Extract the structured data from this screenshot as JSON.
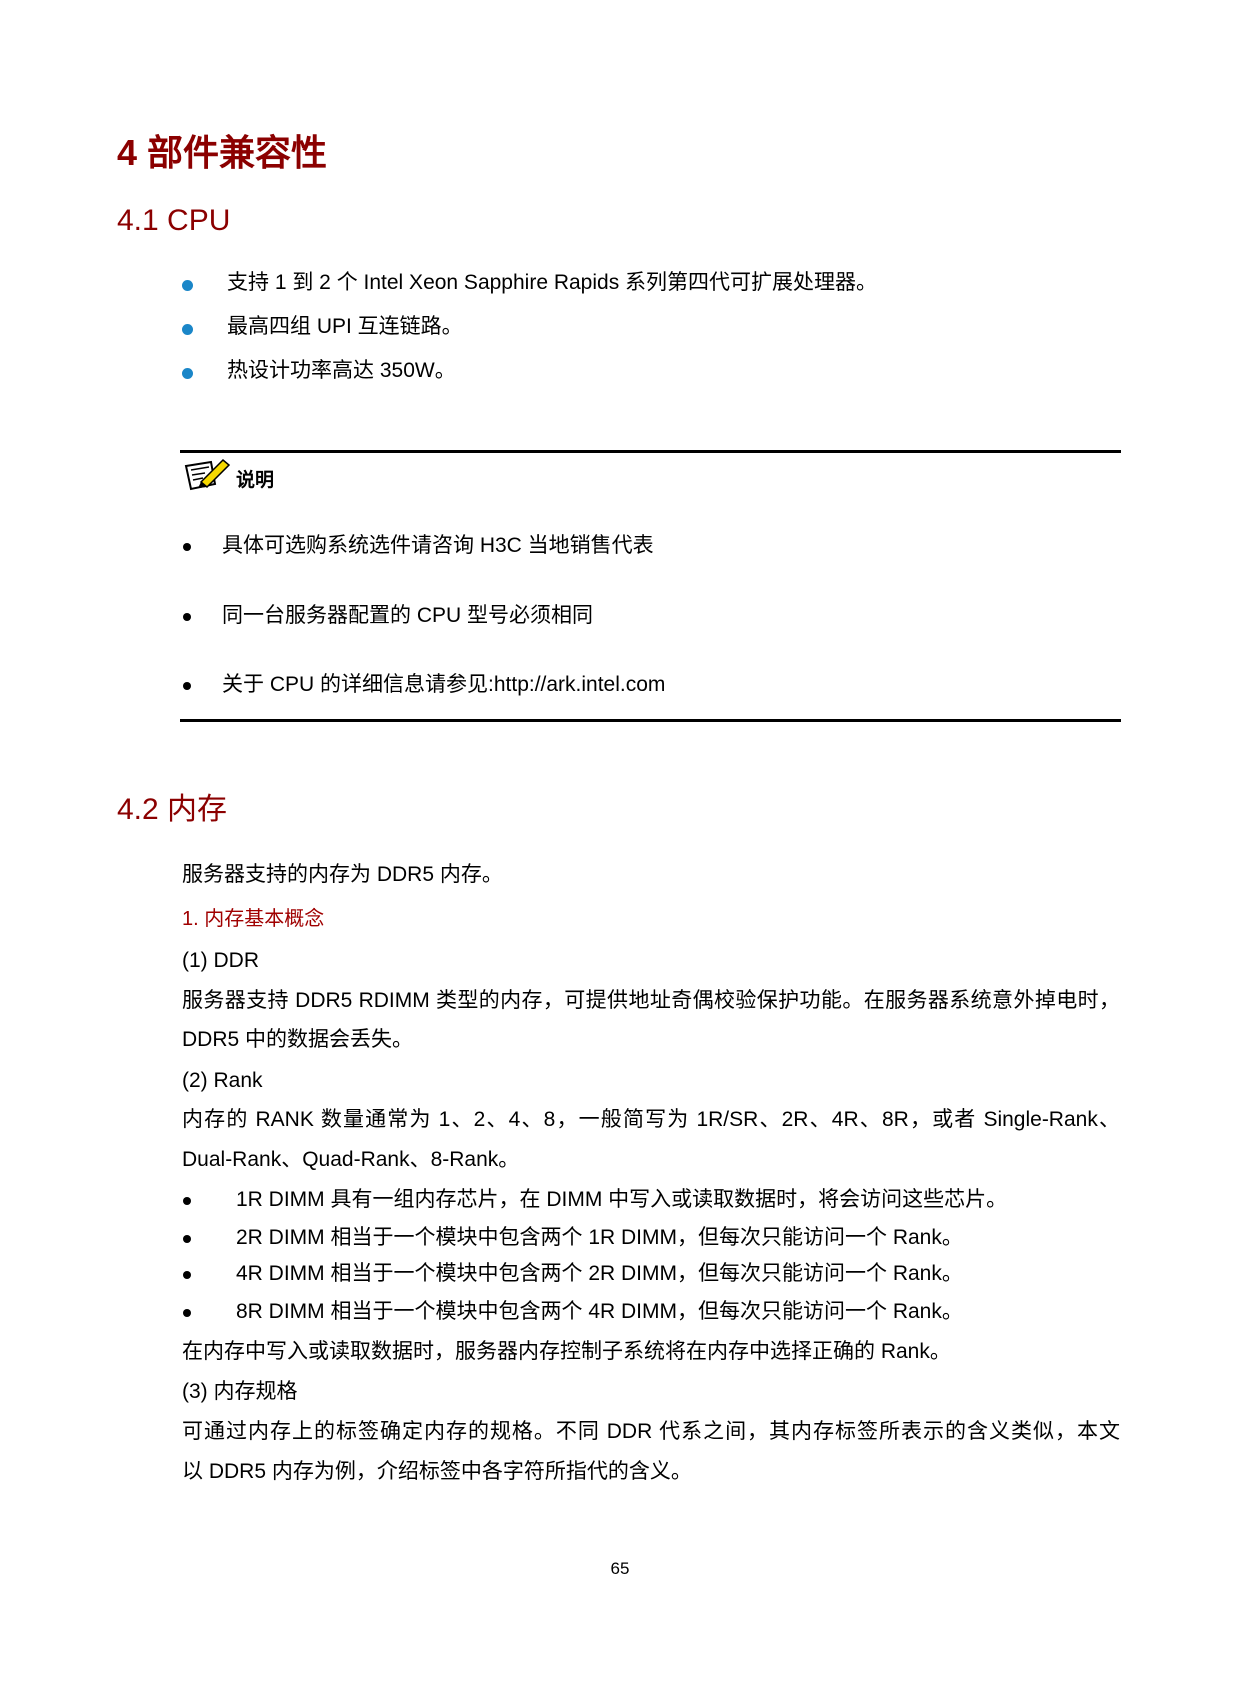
{
  "chapter_title": "4  部件兼容性",
  "sections": {
    "cpu": {
      "title": "4.1  CPU",
      "bullets": [
        "支持 1 到 2 个 Intel Xeon Sapphire Rapids 系列第四代可扩展处理器。",
        "最高四组 UPI 互连链路。",
        "热设计功率高达 350W。"
      ],
      "note": {
        "icon": "note-pencil-icon",
        "label": "说明",
        "items": [
          "具体可选购系统选件请咨询 H3C 当地销售代表",
          "同一台服务器配置的 CPU 型号必须相同",
          "关于 CPU 的详细信息请参见:http://ark.intel.com"
        ]
      }
    },
    "memory": {
      "title": "4.2  内存",
      "intro": "服务器支持的内存为 DDR5 内存。",
      "subheading": "1. 内存基本概念",
      "ddr": {
        "label": "(1)    DDR",
        "lines": [
          "服务器支持 DDR5 RDIMM 类型的内存，可提供地址奇偶校验保护功能。在服务器系统意外掉电时，",
          "DDR5 中的数据会丢失。"
        ]
      },
      "rank": {
        "label": "(2)    Rank",
        "lines": [
          "内存的 RANK 数量通常为 1、2、4、8，一般简写为 1R/SR、2R、4R、8R，或者 Single-Rank、",
          "Dual-Rank、Quad-Rank、8-Rank。"
        ],
        "bullets": [
          "1R DIMM 具有一组内存芯片，在 DIMM 中写入或读取数据时，将会访问这些芯片。",
          "2R DIMM 相当于一个模块中包含两个 1R DIMM，但每次只能访问一个 Rank。",
          "4R DIMM 相当于一个模块中包含两个 2R DIMM，但每次只能访问一个 Rank。",
          "8R DIMM 相当于一个模块中包含两个 4R DIMM，但每次只能访问一个 Rank。"
        ],
        "after": "在内存中写入或读取数据时，服务器内存控制子系统将在内存中选择正确的 Rank。"
      },
      "spec": {
        "label": "(3)    内存规格",
        "lines": [
          "可通过内存上的标签确定内存的规格。不同 DDR 代系之间，其内存标签所表示的含义类似，本文",
          "以 DDR5 内存为例，介绍标签中各字符所指代的含义。"
        ]
      }
    }
  },
  "page_number": "65",
  "colors": {
    "heading": "#8b0000",
    "bullet_blue": "#1a86c8"
  }
}
